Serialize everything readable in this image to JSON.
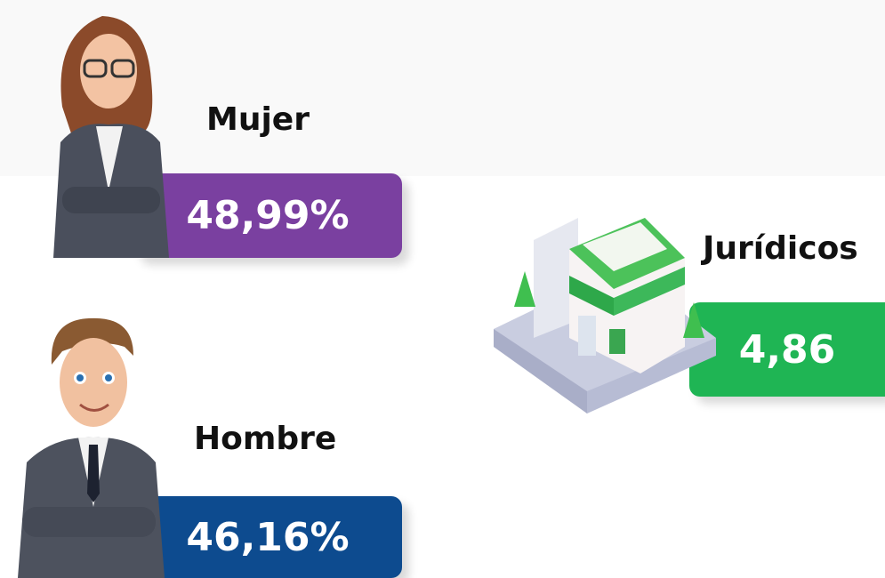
{
  "items": [
    {
      "label": "Mujer",
      "value": "48,99%"
    },
    {
      "label": "Hombre",
      "value": "46,16%"
    },
    {
      "label": "Jurídicos",
      "value": "4,86"
    }
  ]
}
